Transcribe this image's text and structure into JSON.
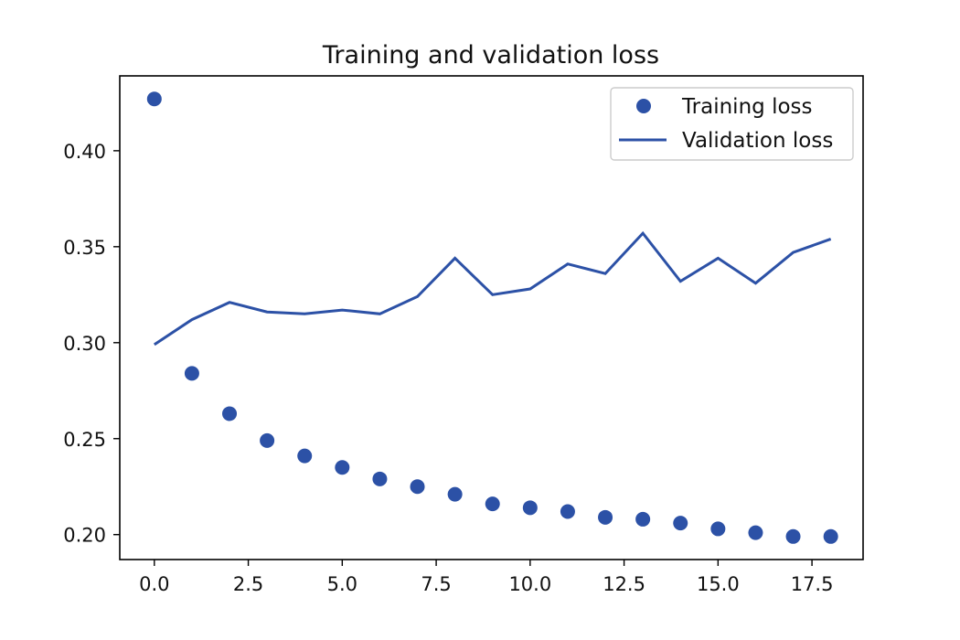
{
  "chart_data": {
    "type": "line",
    "title": "Training and validation loss",
    "xlabel": "",
    "ylabel": "",
    "xlim": [
      -0.92,
      18.86
    ],
    "ylim": [
      0.187,
      0.439
    ],
    "grid": false,
    "legend_position": "top-right",
    "x_ticks": [
      0.0,
      2.5,
      5.0,
      7.5,
      10.0,
      12.5,
      15.0,
      17.5
    ],
    "x_tick_labels": [
      "0.0",
      "2.5",
      "5.0",
      "7.5",
      "10.0",
      "12.5",
      "15.0",
      "17.5"
    ],
    "y_ticks": [
      0.2,
      0.25,
      0.3,
      0.35,
      0.4
    ],
    "y_tick_labels": [
      "0.20",
      "0.25",
      "0.30",
      "0.35",
      "0.40"
    ],
    "x": [
      0,
      1,
      2,
      3,
      4,
      5,
      6,
      7,
      8,
      9,
      10,
      11,
      12,
      13,
      14,
      15,
      16,
      17,
      18
    ],
    "series": [
      {
        "name": "Training loss",
        "style": "markers",
        "color": "#2c51a6",
        "values": [
          0.427,
          0.284,
          0.263,
          0.249,
          0.241,
          0.235,
          0.229,
          0.225,
          0.221,
          0.216,
          0.214,
          0.212,
          0.209,
          0.208,
          0.206,
          0.203,
          0.201,
          0.199,
          0.199
        ]
      },
      {
        "name": "Validation loss",
        "style": "line",
        "color": "#2c51a6",
        "values": [
          0.299,
          0.312,
          0.321,
          0.316,
          0.315,
          0.317,
          0.315,
          0.324,
          0.344,
          0.325,
          0.328,
          0.341,
          0.336,
          0.357,
          0.332,
          0.344,
          0.331,
          0.347,
          0.354
        ]
      }
    ]
  }
}
